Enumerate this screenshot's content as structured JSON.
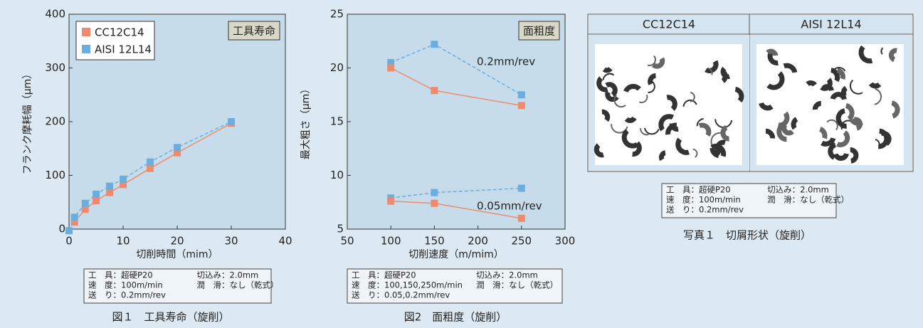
{
  "chart_data": [
    {
      "type": "line",
      "badge": "工具寿命",
      "xlabel": "切削時間（mim）",
      "ylabel": "フランク摩耗幅（μm）",
      "xlim": [
        0,
        40
      ],
      "xticks": [
        0,
        10,
        20,
        30,
        40
      ],
      "ylim": [
        0,
        400
      ],
      "yticks": [
        0,
        100,
        200,
        300,
        400
      ],
      "legend": "upper left",
      "series": [
        {
          "name": "CC12C14",
          "color": "#f08a6c",
          "linestyle": "solid",
          "x": [
            1,
            3,
            5,
            7.5,
            10,
            15,
            20,
            30
          ],
          "values": [
            13,
            37,
            53,
            68,
            83,
            113,
            142,
            197
          ]
        },
        {
          "name": "AISI 12L14",
          "color": "#6aaee0",
          "linestyle": "dashed",
          "x": [
            0,
            1,
            3,
            5,
            7.5,
            10,
            15,
            20,
            30
          ],
          "values": [
            -3,
            22,
            48,
            65,
            80,
            93,
            125,
            152,
            200
          ]
        }
      ],
      "conditions": [
        [
          "工　具：超硬P20",
          "切込み：2.0mm"
        ],
        [
          "速　度：100m/min",
          "潤　滑：なし（乾式）"
        ],
        [
          "送　り：0.2mm/rev"
        ]
      ],
      "caption": "図１　工具寿命（旋削）"
    },
    {
      "type": "line",
      "badge": "面粗度",
      "xlabel": "切削速度（m/mim）",
      "ylabel": "最大粗さ（μm）",
      "xlim": [
        50,
        300
      ],
      "xticks": [
        50,
        100,
        150,
        200,
        250,
        300
      ],
      "ylim": [
        5,
        25
      ],
      "yticks": [
        5,
        10,
        15,
        20,
        25
      ],
      "series": [
        {
          "color": "#6aaee0",
          "linestyle": "dashed",
          "x": [
            100,
            150,
            250
          ],
          "values": [
            20.5,
            22.2,
            17.5
          ]
        },
        {
          "color": "#f08a6c",
          "linestyle": "solid",
          "x": [
            100,
            150,
            250
          ],
          "values": [
            20,
            17.9,
            16.5
          ]
        },
        {
          "color": "#6aaee0",
          "linestyle": "dashed",
          "x": [
            100,
            150,
            250
          ],
          "values": [
            7.9,
            8.4,
            8.8
          ]
        },
        {
          "color": "#f08a6c",
          "linestyle": "solid",
          "x": [
            100,
            150,
            250
          ],
          "values": [
            7.6,
            7.4,
            6.0
          ]
        }
      ],
      "annotations": [
        "0.2mm/rev",
        "0.05mm/rev"
      ],
      "conditions": [
        [
          "工　具：超硬P20",
          "切込み：2.0mm"
        ],
        [
          "速　度：100,150,250m/min",
          "潤　滑：なし（乾式）"
        ],
        [
          "送　り：0.05,0.2mm/rev"
        ]
      ],
      "caption": "図2　面粗度（旋削）"
    }
  ],
  "photo": {
    "headers": [
      "CC12C14",
      "AISI 12L14"
    ],
    "conditions": [
      [
        "工　具：超硬P20",
        "切込み：2.0mm"
      ],
      [
        "速　度：100m/min",
        "潤　滑：なし（乾式）"
      ],
      [
        "送　り：0.2mm/rev"
      ]
    ],
    "caption": "写真１　切屑形状（旋削）"
  }
}
